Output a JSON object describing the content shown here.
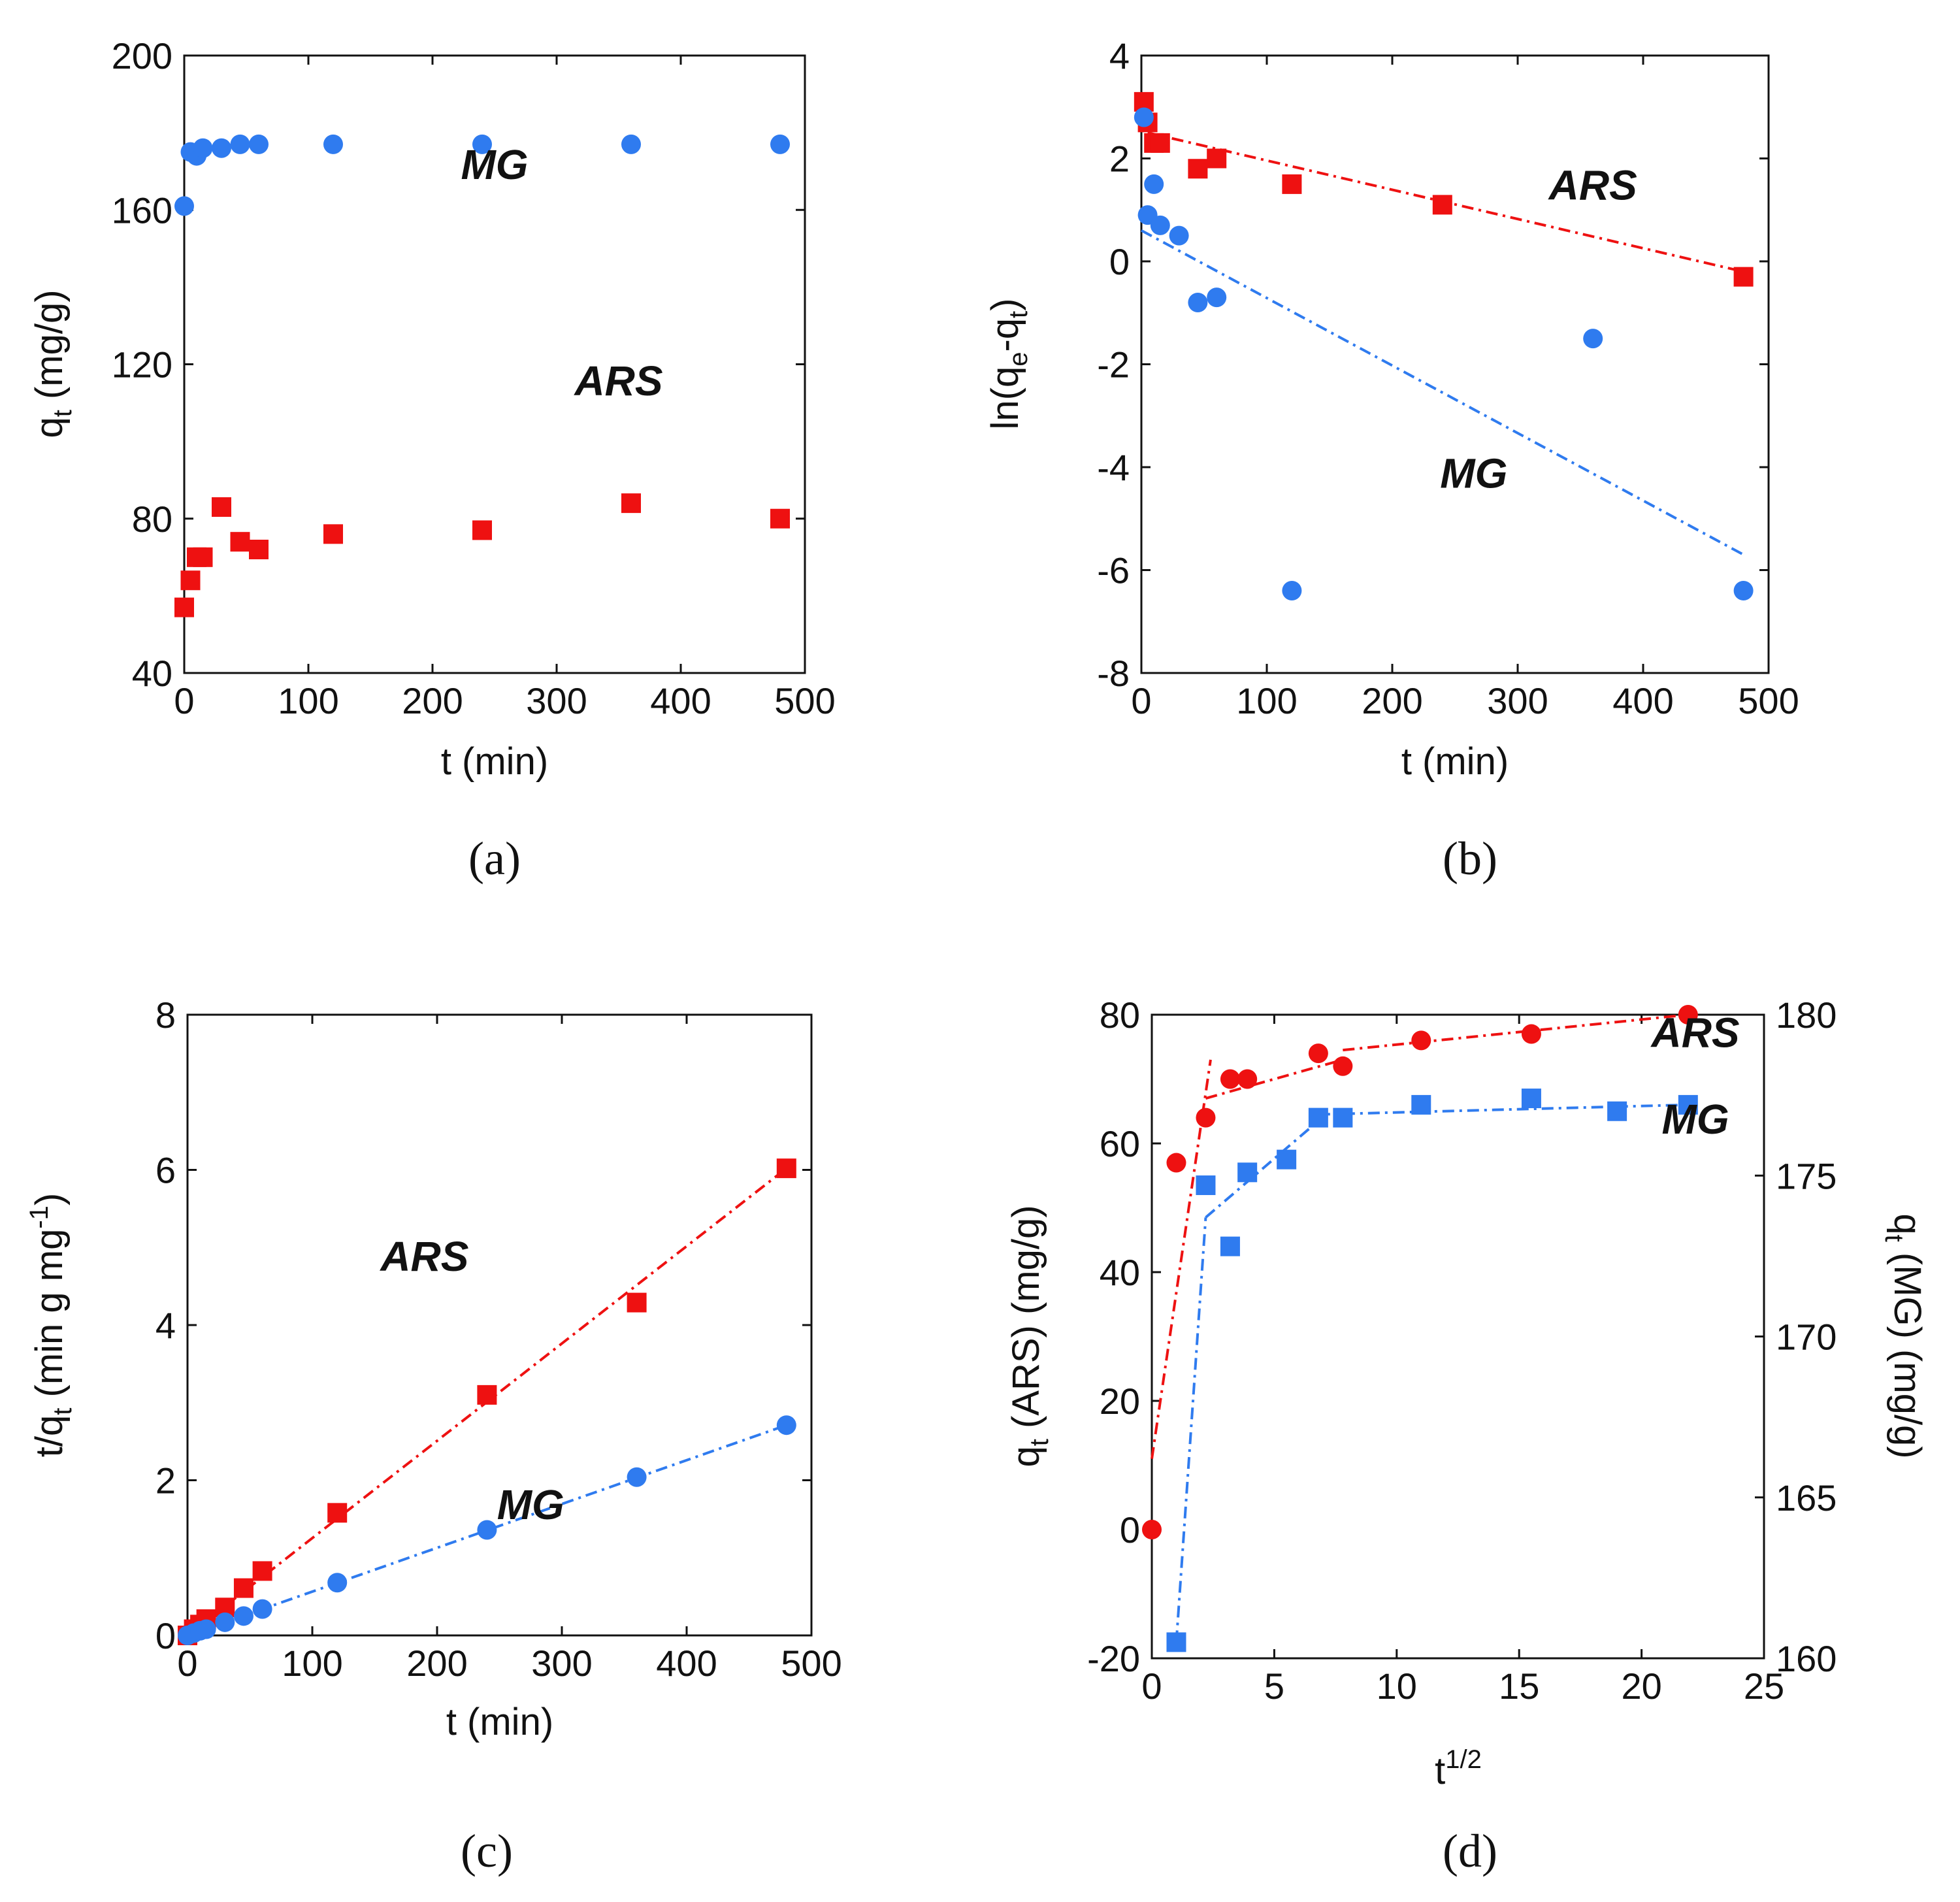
{
  "colors": {
    "red": "#ee1111",
    "blue": "#2f7bef",
    "axis": "#111111"
  },
  "chart_data": [
    {
      "id": "a",
      "type": "scatter",
      "caption": "(a)",
      "xlabel": "t (min)",
      "ylabel_parts": {
        "main": "q",
        "sub": "t",
        "rest": " (mg/g)"
      },
      "xlim": [
        0,
        500
      ],
      "ylim": [
        40,
        200
      ],
      "xticks": [
        0,
        100,
        200,
        300,
        400,
        500
      ],
      "yticks": [
        40,
        80,
        120,
        160,
        200
      ],
      "series": [
        {
          "name": "MG",
          "marker": "circle",
          "color": "blue",
          "x": [
            0,
            5,
            10,
            15,
            30,
            45,
            60,
            120,
            240,
            360,
            480
          ],
          "y": [
            161,
            175,
            174,
            176,
            176,
            177,
            177,
            177,
            177,
            177,
            177
          ]
        },
        {
          "name": "ARS",
          "marker": "square",
          "color": "red",
          "x": [
            0,
            5,
            10,
            15,
            30,
            45,
            60,
            120,
            240,
            360,
            480
          ],
          "y": [
            57,
            64,
            70,
            70,
            83,
            74,
            72,
            76,
            77,
            84,
            80
          ]
        }
      ],
      "annotations": [
        {
          "text": "MG",
          "x": 250,
          "y": 168
        },
        {
          "text": "ARS",
          "x": 350,
          "y": 112
        }
      ]
    },
    {
      "id": "b",
      "type": "scatter",
      "caption": "(b)",
      "xlabel": "t (min)",
      "ylabel_parts": {
        "main": "ln(q",
        "sub": "e",
        "mid": "-q",
        "sub2": "t",
        "rest": ")"
      },
      "xlim": [
        0,
        500
      ],
      "ylim": [
        -8,
        4
      ],
      "xticks": [
        0,
        100,
        200,
        300,
        400,
        500
      ],
      "yticks": [
        -8,
        -6,
        -4,
        -2,
        0,
        2,
        4
      ],
      "series": [
        {
          "name": "ARS",
          "marker": "square",
          "color": "red",
          "x": [
            2,
            5,
            10,
            15,
            45,
            60,
            120,
            240,
            480
          ],
          "y": [
            3.1,
            2.7,
            2.3,
            2.3,
            1.8,
            2.0,
            1.5,
            1.1,
            -0.3
          ],
          "fit": {
            "x": [
              5,
              480
            ],
            "y": [
              2.5,
              -0.2
            ]
          }
        },
        {
          "name": "MG",
          "marker": "circle",
          "color": "blue",
          "x": [
            2,
            5,
            10,
            15,
            30,
            45,
            60,
            120,
            360,
            480
          ],
          "y": [
            2.8,
            0.9,
            1.5,
            0.7,
            0.5,
            -0.8,
            -0.7,
            -6.4,
            -1.5,
            -6.4
          ],
          "fit": {
            "x": [
              0,
              480
            ],
            "y": [
              0.6,
              -5.7
            ]
          }
        }
      ],
      "annotations": [
        {
          "text": "ARS",
          "x": 360,
          "y": 1.2
        },
        {
          "text": "MG",
          "x": 265,
          "y": -4.4
        }
      ]
    },
    {
      "id": "c",
      "type": "scatter",
      "caption": "(c)",
      "xlabel": "t (min)",
      "ylabel_parts": {
        "main": "t/q",
        "sub": "t",
        "rest": " (min g mg",
        "sup": "-1",
        "end": ")"
      },
      "xlim": [
        0,
        500
      ],
      "ylim": [
        0,
        8
      ],
      "xticks": [
        0,
        100,
        200,
        300,
        400,
        500
      ],
      "yticks": [
        0,
        2,
        4,
        6,
        8
      ],
      "series": [
        {
          "name": "ARS",
          "marker": "square",
          "color": "red",
          "x": [
            0,
            5,
            10,
            15,
            30,
            45,
            60,
            120,
            240,
            360,
            480
          ],
          "y": [
            0,
            0.08,
            0.14,
            0.21,
            0.36,
            0.61,
            0.83,
            1.58,
            3.1,
            4.29,
            6.02
          ],
          "fit": {
            "x": [
              0,
              480
            ],
            "y": [
              0,
              6.02
            ]
          }
        },
        {
          "name": "MG",
          "marker": "circle",
          "color": "blue",
          "x": [
            0,
            5,
            10,
            15,
            30,
            45,
            60,
            120,
            240,
            360,
            480
          ],
          "y": [
            0,
            0.03,
            0.06,
            0.08,
            0.17,
            0.25,
            0.34,
            0.68,
            1.36,
            2.04,
            2.71
          ],
          "fit": {
            "x": [
              0,
              480
            ],
            "y": [
              0,
              2.71
            ]
          }
        }
      ],
      "annotations": [
        {
          "text": "ARS",
          "x": 190,
          "y": 4.7
        },
        {
          "text": "MG",
          "x": 275,
          "y": 1.5
        }
      ]
    },
    {
      "id": "d",
      "type": "scatter",
      "caption": "(d)",
      "xlabel_parts": {
        "main": "t",
        "sup": "1/2"
      },
      "ylabel_parts": {
        "main": "q",
        "sub": "t",
        "rest": " (ARS) (mg/g)"
      },
      "y2label_parts": {
        "main": "q",
        "sub": "t",
        "rest": " (MG) (mg/g)"
      },
      "xlim": [
        0,
        25
      ],
      "ylim": [
        -20,
        80
      ],
      "y2lim": [
        160,
        180
      ],
      "xticks": [
        0,
        5,
        10,
        15,
        20,
        25
      ],
      "yticks": [
        -20,
        0,
        20,
        40,
        60,
        80
      ],
      "y2ticks": [
        160,
        165,
        170,
        175,
        180
      ],
      "series": [
        {
          "name": "ARS",
          "marker": "circle",
          "color": "red",
          "axis": "left",
          "x": [
            0,
            1,
            2.2,
            3.2,
            3.9,
            6.8,
            7.8,
            11,
            15.5,
            21.9
          ],
          "y": [
            0,
            57,
            64,
            70,
            70,
            74,
            72,
            76,
            77,
            80
          ],
          "fits": [
            {
              "x": [
                0,
                2.4
              ],
              "y": [
                11,
                73
              ]
            },
            {
              "x": [
                2.2,
                7.8
              ],
              "y": [
                67,
                73
              ]
            },
            {
              "x": [
                7.8,
                21.9
              ],
              "y": [
                74.5,
                80
              ]
            }
          ]
        },
        {
          "name": "MG",
          "marker": "square",
          "color": "blue",
          "axis": "right",
          "x": [
            1,
            2.2,
            3.2,
            3.9,
            5.5,
            6.8,
            7.8,
            11,
            15.5,
            19,
            21.9
          ],
          "y": [
            160.5,
            174.7,
            172.8,
            175.1,
            175.5,
            176.8,
            176.8,
            177.2,
            177.4,
            177.0,
            177.2
          ],
          "fits": [
            {
              "x": [
                1,
                2.2
              ],
              "y": [
                160.5,
                173.7
              ]
            },
            {
              "x": [
                2.2,
                6.8
              ],
              "y": [
                173.7,
                176.7
              ]
            },
            {
              "x": [
                6.8,
                21.9
              ],
              "y": [
                176.9,
                177.2
              ]
            }
          ]
        }
      ],
      "annotations": [
        {
          "text": "ARS",
          "x": 22.2,
          "y": 75
        },
        {
          "text": "MG",
          "x": 22.2,
          "y": 61.5
        }
      ]
    }
  ]
}
